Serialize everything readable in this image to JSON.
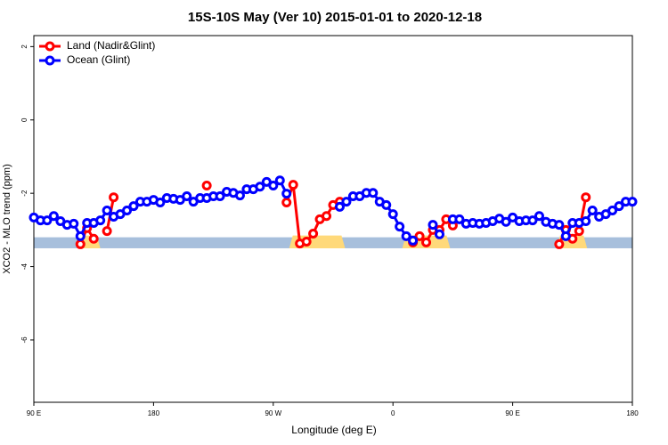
{
  "chart_data": {
    "type": "line",
    "title": "15S-10S May (Ver 10)   2015-01-01 to 2020-12-18",
    "x_label": "Longitude (deg E)",
    "y_label": "XCO2 - MLO trend (ppm)",
    "xlim": [
      90,
      540
    ],
    "ylim": [
      -7.7,
      2.3
    ],
    "xticks": [
      {
        "value": 90,
        "label": "90 E"
      },
      {
        "value": 180,
        "label": "180"
      },
      {
        "value": 270,
        "label": "90 W"
      },
      {
        "value": 360,
        "label": "0"
      },
      {
        "value": 450,
        "label": "90 E"
      },
      {
        "value": 540,
        "label": "180"
      }
    ],
    "yticks": [
      -6,
      -4,
      -2,
      0,
      2
    ],
    "legend": "top-left",
    "band": [
      -3.5,
      -3.2
    ],
    "band_color": "#a7bfdc",
    "land_color": "#ffd97a",
    "land_spans": [
      [
        123,
        140
      ],
      [
        282,
        324
      ],
      [
        367,
        403
      ],
      [
        483,
        506
      ]
    ],
    "x": [
      90,
      95,
      100,
      105,
      110,
      115,
      120,
      125,
      130,
      135,
      140,
      145,
      150,
      155,
      160,
      165,
      170,
      175,
      180,
      185,
      190,
      195,
      200,
      205,
      210,
      215,
      220,
      225,
      230,
      235,
      240,
      245,
      250,
      255,
      260,
      265,
      270,
      275,
      280,
      285,
      290,
      295,
      300,
      305,
      310,
      315,
      320,
      325,
      330,
      335,
      340,
      345,
      350,
      355,
      360,
      365,
      370,
      375,
      380,
      385,
      390,
      395,
      400,
      405,
      410,
      415,
      420,
      425,
      430,
      435,
      440,
      445,
      450,
      455,
      460,
      465,
      470,
      475,
      480,
      485,
      490,
      495,
      500,
      505,
      510,
      515,
      520,
      525,
      530,
      535,
      540
    ],
    "series": [
      {
        "name": "Land (Nadir&Glint)",
        "color": "#ff0000",
        "values": [
          null,
          null,
          null,
          null,
          null,
          null,
          null,
          -3.39,
          -2.95,
          -3.24,
          null,
          -3.03,
          -2.11,
          null,
          null,
          null,
          null,
          null,
          null,
          null,
          null,
          null,
          null,
          null,
          null,
          null,
          -1.79,
          null,
          null,
          null,
          null,
          null,
          null,
          null,
          null,
          null,
          null,
          null,
          -2.25,
          -1.77,
          -3.37,
          -3.32,
          -3.1,
          -2.71,
          -2.62,
          -2.32,
          -2.23,
          null,
          null,
          null,
          null,
          null,
          null,
          null,
          null,
          null,
          null,
          -3.34,
          -3.17,
          -3.34,
          -3.0,
          -3.0,
          -2.71,
          -2.88,
          null,
          null,
          null,
          null,
          null,
          null,
          null,
          null,
          null,
          null,
          null,
          null,
          null,
          null,
          null,
          -3.39,
          -3.0,
          -3.24,
          -3.03,
          -2.11,
          null,
          null,
          null,
          null,
          null,
          null,
          null
        ]
      },
      {
        "name": "Ocean (Glint)",
        "color": "#0000ff",
        "values": [
          -2.66,
          -2.74,
          -2.74,
          -2.62,
          -2.76,
          -2.86,
          -2.83,
          -3.17,
          -2.81,
          -2.81,
          -2.74,
          -2.47,
          -2.64,
          -2.57,
          -2.47,
          -2.35,
          -2.23,
          -2.23,
          -2.18,
          -2.25,
          -2.13,
          -2.15,
          -2.18,
          -2.08,
          -2.23,
          -2.13,
          -2.13,
          -2.08,
          -2.08,
          -1.96,
          -1.99,
          -2.06,
          -1.89,
          -1.89,
          -1.82,
          -1.69,
          -1.79,
          -1.65,
          -2.01,
          null,
          null,
          null,
          null,
          null,
          null,
          null,
          -2.37,
          -2.23,
          -2.08,
          -2.08,
          -1.99,
          -1.99,
          -2.23,
          -2.32,
          -2.57,
          -2.91,
          -3.17,
          -3.29,
          null,
          null,
          -2.86,
          -3.12,
          null,
          -2.71,
          -2.71,
          -2.83,
          -2.81,
          -2.83,
          -2.81,
          -2.76,
          -2.69,
          -2.78,
          -2.66,
          -2.76,
          -2.74,
          -2.74,
          -2.62,
          -2.78,
          -2.83,
          -2.86,
          -3.17,
          -2.81,
          -2.81,
          -2.76,
          -2.47,
          -2.64,
          -2.57,
          -2.47,
          -2.35,
          -2.23,
          -2.23
        ]
      }
    ]
  }
}
